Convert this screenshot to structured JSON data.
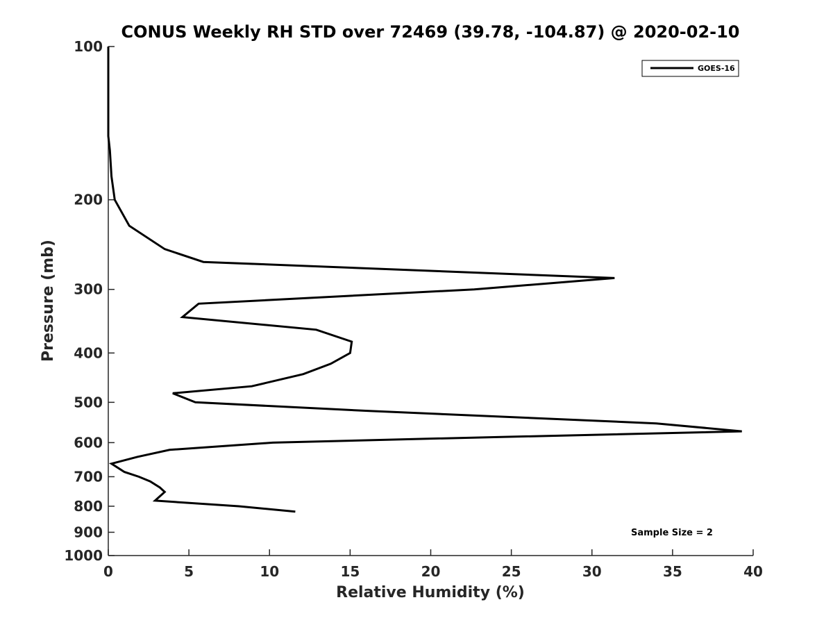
{
  "chart_data": {
    "type": "line",
    "title": "CONUS Weekly RH STD over 72469 (39.78, -104.87) @ 2020-02-10",
    "xlabel": "Relative Humidity (%)",
    "ylabel": "Pressure (mb)",
    "xlim": [
      0,
      40
    ],
    "ylim": [
      100,
      1000
    ],
    "yscale": "log",
    "y_reversed": true,
    "x_ticks": [
      "0",
      "5",
      "10",
      "15",
      "20",
      "25",
      "30",
      "35",
      "40"
    ],
    "y_ticks": [
      "100",
      "200",
      "300",
      "400",
      "500",
      "600",
      "700",
      "800",
      "900",
      "1000"
    ],
    "legend_position": "top-right",
    "grid": false,
    "annotation": "Sample Size = 2",
    "series": [
      {
        "name": "GOES-16",
        "color": "#000000",
        "x": [
          0.0,
          0.0,
          0.0,
          0.1,
          0.2,
          0.4,
          1.3,
          3.5,
          5.9,
          31.4,
          22.7,
          5.6,
          4.6,
          12.9,
          15.1,
          15.0,
          13.8,
          12.1,
          8.9,
          4.0,
          5.4,
          16.2,
          34.0,
          39.3,
          19.4,
          10.2,
          3.8,
          1.8,
          0.2,
          1.0,
          1.9,
          2.6,
          3.2,
          3.5,
          2.9,
          8.1,
          11.6
        ],
        "y": [
          100,
          125,
          150,
          160,
          180,
          200,
          225,
          250,
          265,
          285,
          300,
          320,
          340,
          360,
          380,
          400,
          420,
          440,
          465,
          480,
          500,
          520,
          550,
          570,
          590,
          600,
          620,
          640,
          660,
          685,
          700,
          715,
          735,
          750,
          780,
          800,
          820
        ]
      }
    ]
  }
}
